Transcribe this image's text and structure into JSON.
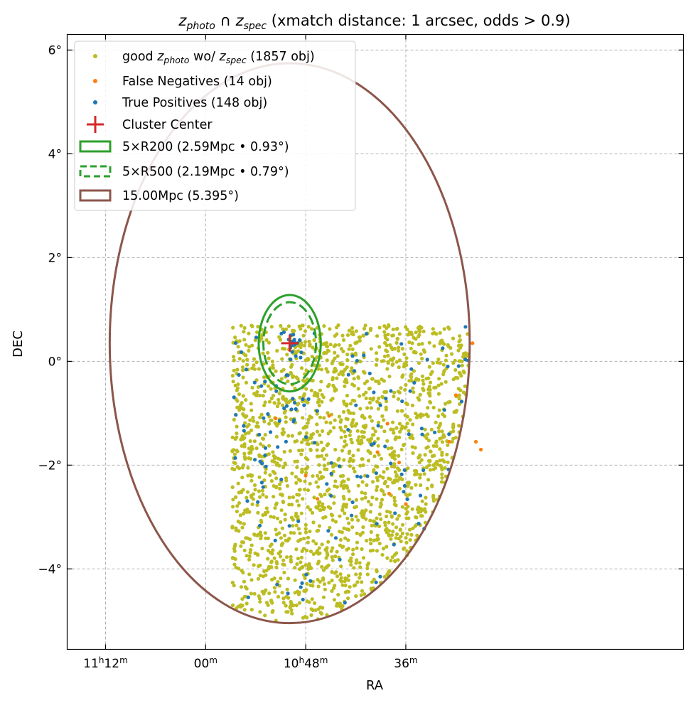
{
  "chart_data": {
    "type": "scatter",
    "title": {
      "main": "z",
      "photo_sub": "photo",
      "cap": " ∩ ",
      "spec_main": "z",
      "spec_sub": "spec",
      "rest": " (xmatch distance: 1 arcsec, odds > 0.9)"
    },
    "xlabel": "RA",
    "ylabel": "DEC",
    "xlim_ra_deg": [
      169.15,
      150.68
    ],
    "ylim_dec_deg": [
      -5.55,
      6.3
    ],
    "x_ticks": [
      {
        "value": 168.0,
        "h": "11",
        "hsup": "h",
        "m": "12",
        "msup": "m"
      },
      {
        "value": 165.0,
        "h": "",
        "hsup": "",
        "m": "00",
        "msup": "m"
      },
      {
        "value": 162.0,
        "h": "10",
        "hsup": "h",
        "m": "48",
        "msup": "m"
      },
      {
        "value": 159.0,
        "h": "",
        "hsup": "",
        "m": "36",
        "msup": "m"
      }
    ],
    "y_ticks": [
      {
        "value": 6,
        "label": "6°"
      },
      {
        "value": 4,
        "label": "4°"
      },
      {
        "value": 2,
        "label": "2°"
      },
      {
        "value": 0,
        "label": "0°"
      },
      {
        "value": -2,
        "label": "−2°"
      },
      {
        "value": -4,
        "label": "−4°"
      }
    ],
    "grid": true,
    "cluster_center": {
      "ra": 162.48,
      "dec": 0.35
    },
    "circles": [
      {
        "name": "r200x5",
        "radius_deg": 0.93,
        "color": "#2ca02c",
        "dashed": false
      },
      {
        "name": "r500x5",
        "radius_deg": 0.79,
        "color": "#2ca02c",
        "dashed": true
      },
      {
        "name": "15mpc",
        "radius_deg": 5.395,
        "color": "#8c564b",
        "dashed": false
      }
    ],
    "series": [
      {
        "name": "good_zphoto",
        "color": "#bcbd22",
        "count": 1857,
        "region": {
          "ra_min": 156.4,
          "ra_max": 164.2,
          "dec_min": -5.0,
          "dec_max": 0.7
        },
        "seed": 11
      },
      {
        "name": "false_negatives",
        "color": "#ff7f0e",
        "count": 14,
        "points": [
          [
            157.0,
            0.35
          ],
          [
            159.55,
            -1.2
          ],
          [
            157.5,
            -0.65
          ],
          [
            156.75,
            -1.7
          ],
          [
            162.0,
            -2.2
          ],
          [
            161.65,
            -2.65
          ],
          [
            159.85,
            -1.75
          ],
          [
            159.5,
            -2.55
          ],
          [
            159.0,
            -2.75
          ],
          [
            156.9,
            -1.55
          ],
          [
            162.9,
            -1.1
          ],
          [
            161.3,
            -1.05
          ],
          [
            157.7,
            -1.55
          ],
          [
            159.2,
            -1.95
          ]
        ]
      },
      {
        "name": "true_positives",
        "color": "#1f77b4",
        "count": 148,
        "seed": 5,
        "clusters": [
          {
            "ra": 162.48,
            "dec": 0.35,
            "sigma": 0.15,
            "n": 18
          },
          {
            "ra": 162.6,
            "dec": -0.85,
            "sigma": 0.35,
            "n": 20
          }
        ],
        "field": {
          "ra_min": 156.4,
          "ra_max": 164.2,
          "dec_min": -5.0,
          "dec_max": 0.7,
          "n": 110
        }
      }
    ],
    "legend": {
      "placement": "upper-left",
      "items": [
        {
          "kind": "dot",
          "color": "#bcbd22",
          "pre": "good ",
          "m1": "z",
          "s1": "photo",
          "mid": " wo/ ",
          "m2": "z",
          "s2": "spec",
          "post": " (1857 obj)"
        },
        {
          "kind": "dot",
          "color": "#ff7f0e",
          "label": "False Negatives (14 obj)"
        },
        {
          "kind": "dot",
          "color": "#1f77b4",
          "label": "True Positives (148 obj)"
        },
        {
          "kind": "plus",
          "color": "#d62728",
          "label": "Cluster Center"
        },
        {
          "kind": "rect",
          "color": "#2ca02c",
          "dashed": false,
          "label": "5×R200 (2.59Mpc • 0.93°)"
        },
        {
          "kind": "rect",
          "color": "#2ca02c",
          "dashed": true,
          "label": "5×R500 (2.19Mpc • 0.79°)"
        },
        {
          "kind": "rect",
          "color": "#8c564b",
          "dashed": false,
          "label": "15.00Mpc (5.395°)"
        }
      ]
    }
  }
}
